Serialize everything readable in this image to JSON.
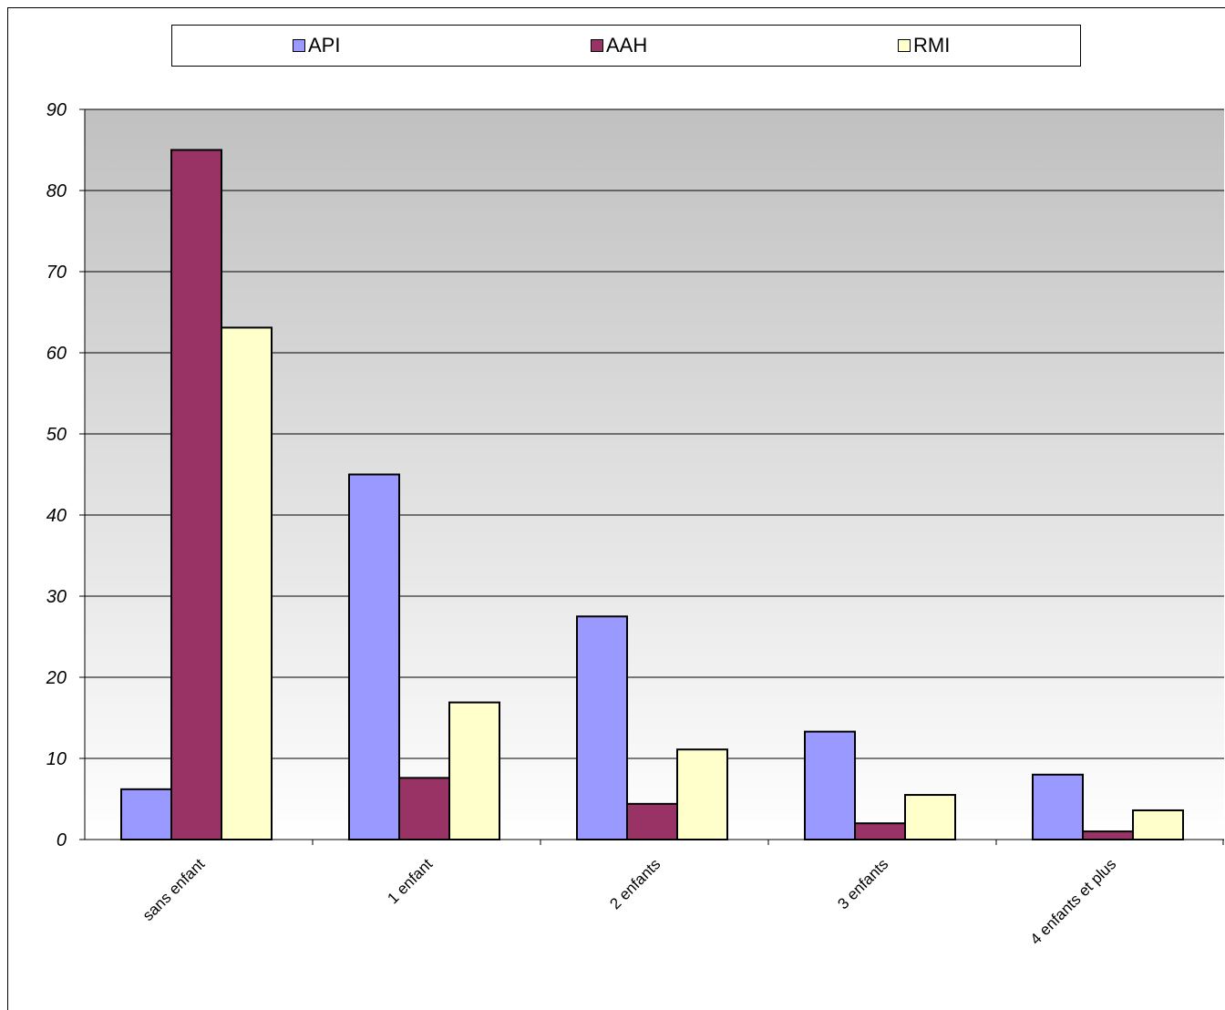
{
  "chart_data": {
    "type": "bar",
    "categories": [
      "sans enfant",
      "1 enfant",
      "2 enfants",
      "3 enfants",
      "4 enfants et plus"
    ],
    "series": [
      {
        "name": "API",
        "values": [
          6.2,
          45,
          27.5,
          13.3,
          8
        ],
        "color": "#9999ff"
      },
      {
        "name": "AAH",
        "values": [
          85,
          7.6,
          4.4,
          2,
          1
        ],
        "color": "#993366"
      },
      {
        "name": "RMI",
        "values": [
          63.1,
          16.9,
          11.1,
          5.5,
          3.6
        ],
        "color": "#ffffcc"
      }
    ],
    "ylim": [
      0,
      90
    ],
    "yticks": [
      "0",
      "10",
      "20",
      "30",
      "40",
      "50",
      "60",
      "70",
      "80",
      "90"
    ],
    "grid": true,
    "legend_position": "top"
  }
}
